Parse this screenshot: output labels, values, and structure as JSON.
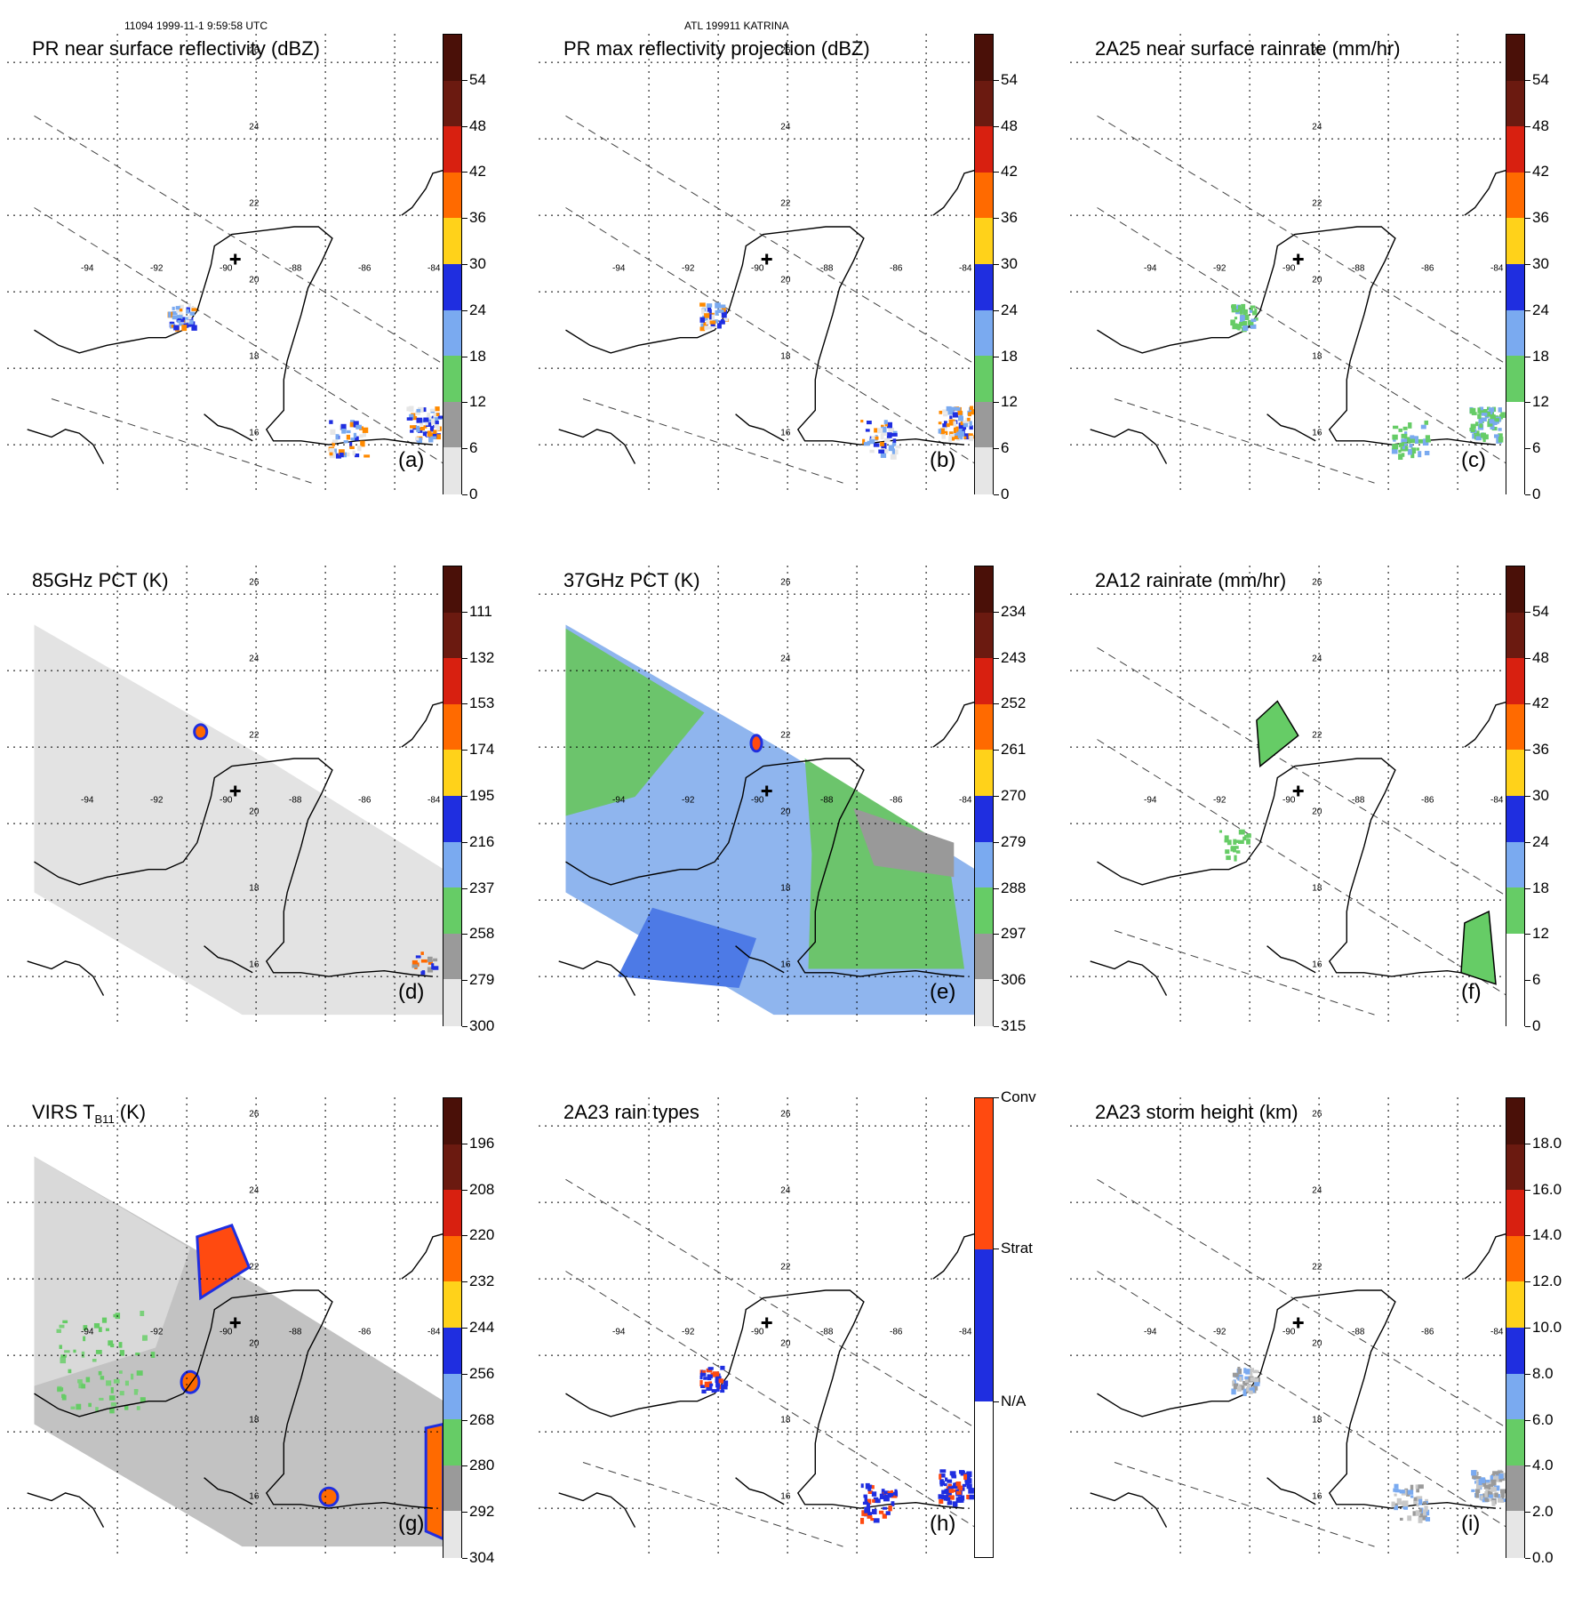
{
  "header": {
    "left": "11094 1999-11-1 9:59:58 UTC",
    "center": "ATL 199911 KATRINA"
  },
  "panels": [
    {
      "id": "a",
      "title": "PR near surface reflectivity (dBZ)",
      "label": "(a)",
      "ticks": [
        "54",
        "48",
        "42",
        "36",
        "30",
        "24",
        "18",
        "12",
        "6",
        "0"
      ],
      "colors": [
        "#6b1a10",
        "#d82010",
        "#ff6a00",
        "#ffd21a",
        "#1f2ee0",
        "#7aaaf0",
        "#66cc66",
        "#9a9a9a",
        "#e6e6e6"
      ],
      "bg": "none",
      "field": "pr"
    },
    {
      "id": "b",
      "title": "PR max reflectivity projection (dBZ)",
      "label": "(b)",
      "ticks": [
        "54",
        "48",
        "42",
        "36",
        "30",
        "24",
        "18",
        "12",
        "6",
        "0"
      ],
      "colors": [
        "#6b1a10",
        "#d82010",
        "#ff6a00",
        "#ffd21a",
        "#1f2ee0",
        "#7aaaf0",
        "#66cc66",
        "#9a9a9a",
        "#e6e6e6"
      ],
      "bg": "none",
      "field": "prmax"
    },
    {
      "id": "c",
      "title": "2A25 near surface rainrate (mm/hr)",
      "label": "(c)",
      "ticks": [
        "54",
        "48",
        "42",
        "36",
        "30",
        "24",
        "18",
        "12",
        "6",
        "0"
      ],
      "colors": [
        "#6b1a10",
        "#d82010",
        "#ff6a00",
        "#ffd21a",
        "#1f2ee0",
        "#7aaaf0",
        "#66cc66"
      ],
      "bg": "none",
      "field": "rain"
    },
    {
      "id": "d",
      "title": "85GHz PCT (K)",
      "label": "(d)",
      "ticks": [
        "111",
        "132",
        "153",
        "174",
        "195",
        "216",
        "237",
        "258",
        "279",
        "300"
      ],
      "colors": [
        "#6b1a10",
        "#d82010",
        "#ff6a00",
        "#ffd21a",
        "#1f2ee0",
        "#7aaaf0",
        "#66cc66",
        "#9a9a9a",
        "#e6e6e6"
      ],
      "bg": "gray",
      "field": "pct85"
    },
    {
      "id": "e",
      "title": "37GHz PCT (K)",
      "label": "(e)",
      "ticks": [
        "234",
        "243",
        "252",
        "261",
        "270",
        "279",
        "288",
        "297",
        "306",
        "315"
      ],
      "colors": [
        "#6b1a10",
        "#d82010",
        "#ff6a00",
        "#ffd21a",
        "#1f2ee0",
        "#7aaaf0",
        "#66cc66",
        "#9a9a9a",
        "#e6e6e6"
      ],
      "bg": "blue",
      "field": "pct37"
    },
    {
      "id": "f",
      "title": "2A12 rainrate (mm/hr)",
      "label": "(f)",
      "ticks": [
        "54",
        "48",
        "42",
        "36",
        "30",
        "24",
        "18",
        "12",
        "6",
        "0"
      ],
      "colors": [
        "#6b1a10",
        "#d82010",
        "#ff6a00",
        "#ffd21a",
        "#1f2ee0",
        "#7aaaf0",
        "#66cc66"
      ],
      "bg": "none",
      "field": "rain2"
    },
    {
      "id": "g",
      "title": "VIRS T",
      "title_sub": "B11",
      "title_end": " (K)",
      "label": "(g)",
      "ticks": [
        "196",
        "208",
        "220",
        "232",
        "244",
        "256",
        "268",
        "280",
        "292",
        "304"
      ],
      "colors": [
        "#6b1a10",
        "#d82010",
        "#ff6a00",
        "#ffd21a",
        "#1f2ee0",
        "#7aaaf0",
        "#66cc66",
        "#9a9a9a",
        "#e6e6e6"
      ],
      "bg": "ir",
      "field": "ir"
    },
    {
      "id": "h",
      "title": "2A23 rain types",
      "label": "(h)",
      "ticks": [
        "Conv",
        "Strat",
        "N/A"
      ],
      "colors": [
        "#ff4a10",
        "#1f2ee0",
        "#ffffff"
      ],
      "bg": "none",
      "field": "types"
    },
    {
      "id": "i",
      "title": "2A23 storm height (km)",
      "label": "(i)",
      "ticks": [
        "18.0",
        "16.0",
        "14.0",
        "12.0",
        "10.0",
        "8.0",
        "6.0",
        "4.0",
        "2.0",
        "0.0"
      ],
      "colors": [
        "#6b1a10",
        "#d82010",
        "#ff6a00",
        "#ffd21a",
        "#1f2ee0",
        "#7aaaf0",
        "#66cc66",
        "#9a9a9a",
        "#e6e6e6"
      ],
      "bg": "none",
      "field": "height"
    }
  ],
  "map": {
    "lat_labels": [
      "26",
      "24",
      "22",
      "20",
      "18",
      "16"
    ],
    "lon_labels": [
      "-94",
      "-92",
      "-90",
      "-88",
      "-86",
      "-84"
    ]
  }
}
